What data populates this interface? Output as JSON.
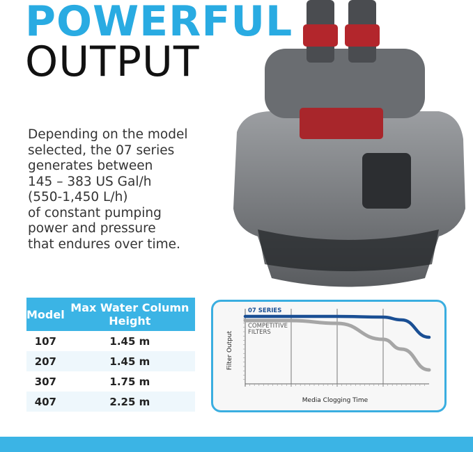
{
  "headline": {
    "line1": "POWERFUL",
    "line2": "OUTPUT"
  },
  "description": [
    "Depending on the model",
    "selected, the 07 series",
    "generates between",
    "145 – 383 US Gal/h",
    "(550-1,450 L/h)",
    "of constant pumping",
    "power and pressure",
    "that endures over time."
  ],
  "table": {
    "headers": [
      "Model",
      "Max Water Column Height"
    ],
    "rows": [
      [
        "107",
        "1.45 m"
      ],
      [
        "207",
        "1.45 m"
      ],
      [
        "307",
        "1.75 m"
      ],
      [
        "407",
        "2.25 m"
      ]
    ]
  },
  "chart_data": {
    "type": "line",
    "xlabel": "Media Clogging Time",
    "ylabel": "Filter Output",
    "x": [
      0,
      0.25,
      0.5,
      0.75,
      0.85,
      1.0
    ],
    "series": [
      {
        "name": "07 SERIES",
        "values": [
          0.97,
          0.97,
          0.97,
          0.96,
          0.92,
          0.67
        ],
        "color": "#1a4f94"
      },
      {
        "name": "COMPETITIVE FILTERS",
        "values": [
          0.91,
          0.91,
          0.87,
          0.64,
          0.5,
          0.2
        ],
        "color": "#a6a6a6"
      }
    ],
    "grid": "vertical",
    "legend": "inline"
  },
  "colors": {
    "accent": "#29abe2",
    "bottom_bar": "#3bb4e5"
  }
}
